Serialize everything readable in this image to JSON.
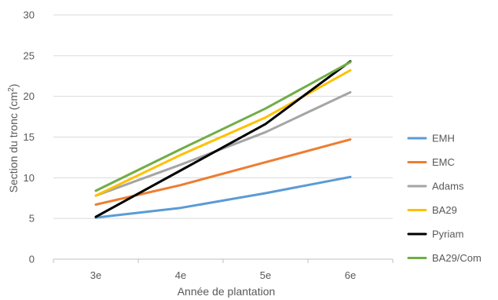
{
  "chart_data": {
    "type": "line",
    "categories": [
      "3e",
      "4e",
      "5e",
      "6e"
    ],
    "xlabel": "Année de plantation",
    "ylabel_prefix": "Section du tronc (cm",
    "ylabel_sup": "2",
    "ylabel_suffix": ")",
    "ylim": [
      0,
      30
    ],
    "yticks": [
      "0",
      "5",
      "10",
      "15",
      "20",
      "25",
      "30"
    ],
    "grid": true,
    "legend_position": "right",
    "series": [
      {
        "name": "EMH",
        "color": "#5B9BD5",
        "values": [
          5.1,
          6.3,
          8.1,
          10.1
        ]
      },
      {
        "name": "EMC",
        "color": "#ED7D31",
        "values": [
          6.7,
          9.1,
          11.9,
          14.7
        ]
      },
      {
        "name": "Adams",
        "color": "#A5A5A5",
        "values": [
          7.8,
          11.6,
          15.6,
          20.5
        ]
      },
      {
        "name": "BA29",
        "color": "#FFC000",
        "values": [
          7.8,
          12.8,
          17.4,
          23.2
        ]
      },
      {
        "name": "Pyriam",
        "color": "#000000",
        "values": [
          5.2,
          10.9,
          16.6,
          24.3
        ]
      },
      {
        "name": "BA29/Com",
        "color": "#70AD47",
        "values": [
          8.4,
          13.5,
          18.5,
          24.2
        ]
      }
    ]
  }
}
